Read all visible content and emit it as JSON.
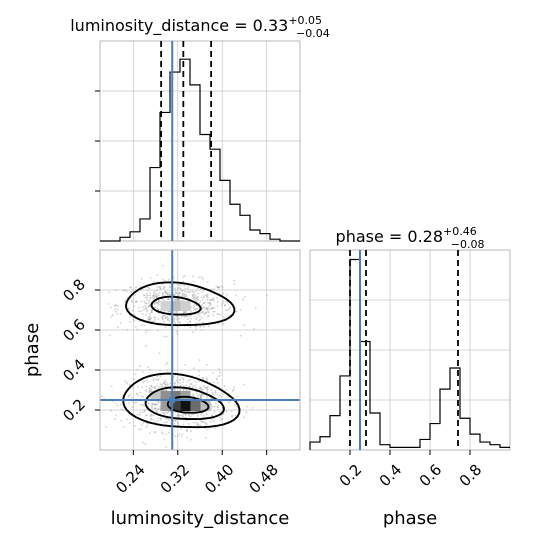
{
  "chart_data": {
    "type": "corner",
    "parameters": [
      "luminosity_distance",
      "phase"
    ],
    "titles": {
      "luminosity_distance": {
        "prefix": "luminosity_distance = 0.33",
        "plus": "+0.05",
        "minus": "−0.04"
      },
      "phase": {
        "prefix": "phase = 0.28",
        "plus": "+0.46",
        "minus": "−0.08"
      }
    },
    "truth": {
      "luminosity_distance": 0.31,
      "phase": 0.25
    },
    "quantiles": {
      "luminosity_distance": [
        0.29,
        0.33,
        0.38
      ],
      "phase": [
        0.2,
        0.28,
        0.74
      ]
    },
    "axes": {
      "luminosity_distance": {
        "range": [
          0.18,
          0.54
        ],
        "ticks": [
          0.24,
          0.32,
          0.4,
          0.48
        ],
        "tick_labels": [
          "0.24",
          "0.32",
          "0.40",
          "0.48"
        ],
        "label": "luminosity_distance"
      },
      "phase": {
        "range": [
          0.0,
          1.0
        ],
        "ticks": [
          0.2,
          0.4,
          0.6,
          0.8
        ],
        "tick_labels": [
          "0.2",
          "0.4",
          "0.6",
          "0.8"
        ],
        "label": "phase"
      }
    },
    "hist_luminosity_distance": {
      "edges": [
        0.18,
        0.198,
        0.216,
        0.234,
        0.252,
        0.27,
        0.288,
        0.306,
        0.324,
        0.342,
        0.36,
        0.378,
        0.396,
        0.414,
        0.432,
        0.45,
        0.468,
        0.486,
        0.504,
        0.522,
        0.54
      ],
      "counts": [
        0,
        0,
        2,
        5,
        12,
        40,
        70,
        92,
        99,
        85,
        58,
        50,
        33,
        20,
        14,
        6,
        4,
        1,
        0,
        0
      ]
    },
    "hist_phase": {
      "edges": [
        0.0,
        0.05,
        0.1,
        0.15,
        0.2,
        0.25,
        0.3,
        0.35,
        0.4,
        0.45,
        0.5,
        0.55,
        0.6,
        0.65,
        0.7,
        0.75,
        0.8,
        0.85,
        0.9,
        0.95,
        1.0
      ],
      "counts": [
        3,
        5,
        13,
        28,
        72,
        41,
        14,
        2,
        1,
        1,
        1,
        4,
        10,
        23,
        31,
        12,
        6,
        3,
        2,
        1
      ]
    },
    "density_modes": [
      {
        "x": 0.316,
        "y": 0.725,
        "sx": 0.04,
        "sy": 0.05,
        "weight": 0.45
      },
      {
        "x": 0.32,
        "y": 0.24,
        "sx": 0.035,
        "sy": 0.06,
        "weight": 0.55
      }
    ],
    "contour_levels": [
      "0.5σ",
      "1σ",
      "1.5σ",
      "2σ"
    ]
  }
}
